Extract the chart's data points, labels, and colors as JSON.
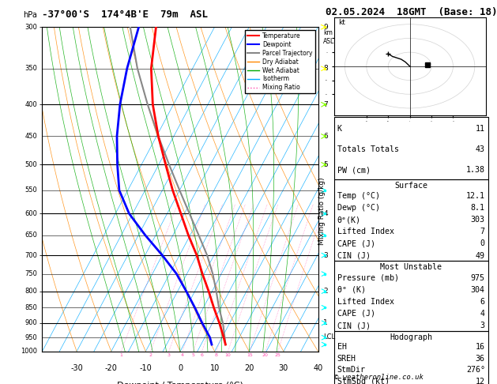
{
  "title_left": "-37°00'S  174°4B'E  79m  ASL",
  "title_right": "02.05.2024  18GMT  (Base: 18)",
  "xlabel": "Dewpoint / Temperature (°C)",
  "ylabel_left": "hPa",
  "bg_color": "#ffffff",
  "pressure_levels": [
    300,
    350,
    400,
    450,
    500,
    550,
    600,
    650,
    700,
    750,
    800,
    850,
    900,
    950,
    1000
  ],
  "temp_ticks": [
    -30,
    -20,
    -10,
    0,
    10,
    20,
    30,
    40
  ],
  "temp_profile_t": [
    12.1,
    10.5,
    7.0,
    3.0,
    -1.0,
    -5.5,
    -10.0,
    -15.5,
    -21.0,
    -27.0,
    -33.0,
    -39.5,
    -46.0,
    -52.0,
    -57.0
  ],
  "temp_profile_p": [
    975,
    950,
    900,
    850,
    800,
    750,
    700,
    650,
    600,
    550,
    500,
    450,
    400,
    350,
    300
  ],
  "dewp_profile_t": [
    8.1,
    6.5,
    2.0,
    -2.5,
    -7.5,
    -13.0,
    -20.0,
    -28.0,
    -36.0,
    -42.5,
    -47.0,
    -51.5,
    -55.5,
    -59.0,
    -62.0
  ],
  "dewp_profile_p": [
    975,
    950,
    900,
    850,
    800,
    750,
    700,
    650,
    600,
    550,
    500,
    450,
    400,
    350,
    300
  ],
  "parcel_t": [
    12.1,
    10.8,
    8.0,
    4.5,
    1.2,
    -2.5,
    -7.0,
    -12.5,
    -18.5,
    -25.0,
    -32.0,
    -39.5,
    -47.5,
    -56.0,
    -64.5
  ],
  "parcel_p": [
    975,
    950,
    900,
    850,
    800,
    750,
    700,
    650,
    600,
    550,
    500,
    450,
    400,
    350,
    300
  ],
  "temp_color": "#ff0000",
  "dewp_color": "#0000ff",
  "parcel_color": "#888888",
  "dry_adiabat_color": "#ff8800",
  "wet_adiabat_color": "#00aa00",
  "isotherm_color": "#00aaff",
  "mixing_ratio_color": "#ff44aa",
  "isotherm_values": [
    -40,
    -35,
    -30,
    -25,
    -20,
    -15,
    -10,
    -5,
    0,
    5,
    10,
    15,
    20,
    25,
    30,
    35,
    40
  ],
  "dry_adiabat_thetas": [
    -40,
    -30,
    -20,
    -10,
    0,
    10,
    20,
    30,
    40,
    50,
    60,
    70
  ],
  "wet_adiabat_thetas": [
    -16,
    -12,
    -8,
    -4,
    0,
    4,
    8,
    12,
    16,
    20,
    24,
    28
  ],
  "mixing_ratios": [
    1,
    2,
    3,
    4,
    5,
    6,
    8,
    10,
    15,
    20,
    25
  ],
  "lcl_pressure": 948,
  "info_K": 11,
  "info_TT": 43,
  "info_PW": 1.38,
  "info_surf_temp": 12.1,
  "info_surf_dewp": 8.1,
  "info_surf_theta": 303,
  "info_surf_li": 7,
  "info_surf_cape": 0,
  "info_surf_cin": 49,
  "info_mu_pres": 975,
  "info_mu_theta": 304,
  "info_mu_li": 6,
  "info_mu_cape": 4,
  "info_mu_cin": 3,
  "info_hodo_eh": 16,
  "info_hodo_sreh": 36,
  "info_hodo_stmdir": 276,
  "info_hodo_stmspd": 12,
  "hodo_u": [
    0,
    -2,
    -4,
    -6,
    -8,
    -9,
    -10
  ],
  "hodo_v": [
    0,
    3,
    5,
    6,
    7,
    8,
    9
  ],
  "copyright": "© weatheronline.co.uk",
  "wind_levels": [
    975,
    950,
    900,
    850,
    800,
    750,
    700,
    650,
    600,
    550,
    500,
    450,
    400,
    350,
    300
  ],
  "wind_colors": [
    "#00ffff",
    "#00ffff",
    "#00ffff",
    "#00ffff",
    "#00ffff",
    "#00ffff",
    "#00ffff",
    "#00ffff",
    "#00ffff",
    "#00ffff",
    "#88ff00",
    "#88ff00",
    "#88ff00",
    "#ffff00",
    "#ffff00"
  ],
  "wind_dirs": [
    275,
    272,
    268,
    263,
    258,
    253,
    248,
    244,
    241,
    238,
    235,
    232,
    230,
    228,
    226
  ],
  "wind_spds": [
    12,
    11,
    10,
    9,
    8,
    7,
    7,
    7,
    8,
    9,
    9,
    10,
    11,
    12,
    13
  ]
}
